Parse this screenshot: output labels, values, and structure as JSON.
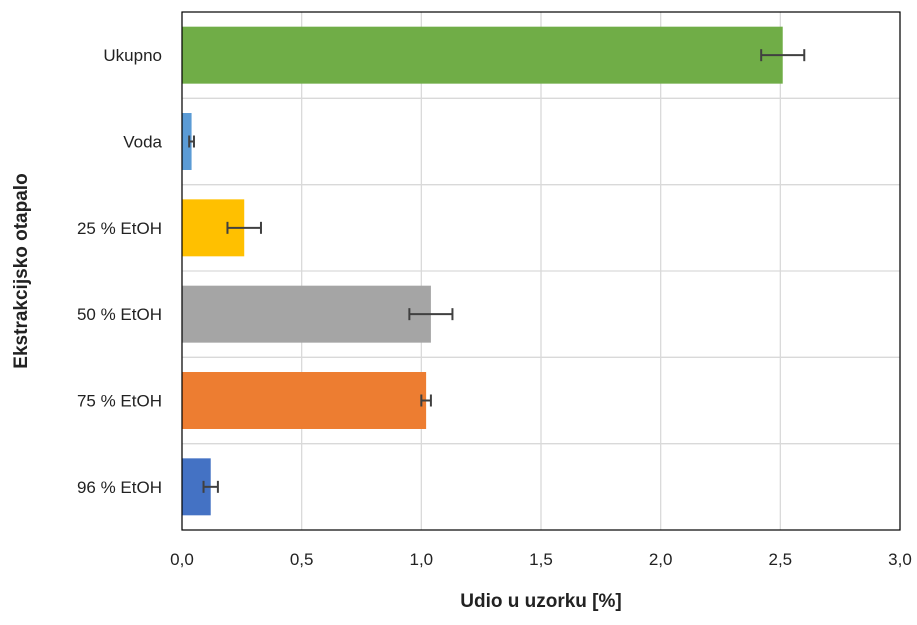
{
  "chart_data": {
    "type": "bar",
    "orientation": "horizontal",
    "categories": [
      "Ukupno",
      "Voda",
      "25 % EtOH",
      "50 % EtOH",
      "75 % EtOH",
      "96 % EtOH"
    ],
    "values": [
      2.51,
      0.04,
      0.26,
      1.04,
      1.02,
      0.12
    ],
    "errors": [
      0.09,
      0.01,
      0.07,
      0.09,
      0.02,
      0.03
    ],
    "bar_colors": [
      "#70AD47",
      "#5B9BD5",
      "#FFC000",
      "#A5A5A5",
      "#ED7D31",
      "#4472C4"
    ],
    "xlabel": "Udio u uzorku [%]",
    "ylabel": "Ekstrakcijsko otapalo",
    "xlim": [
      0,
      3
    ],
    "xticks": [
      "0,0",
      "0,5",
      "1,0",
      "1,5",
      "2,0",
      "2,5",
      "3,0"
    ],
    "grid": true
  }
}
